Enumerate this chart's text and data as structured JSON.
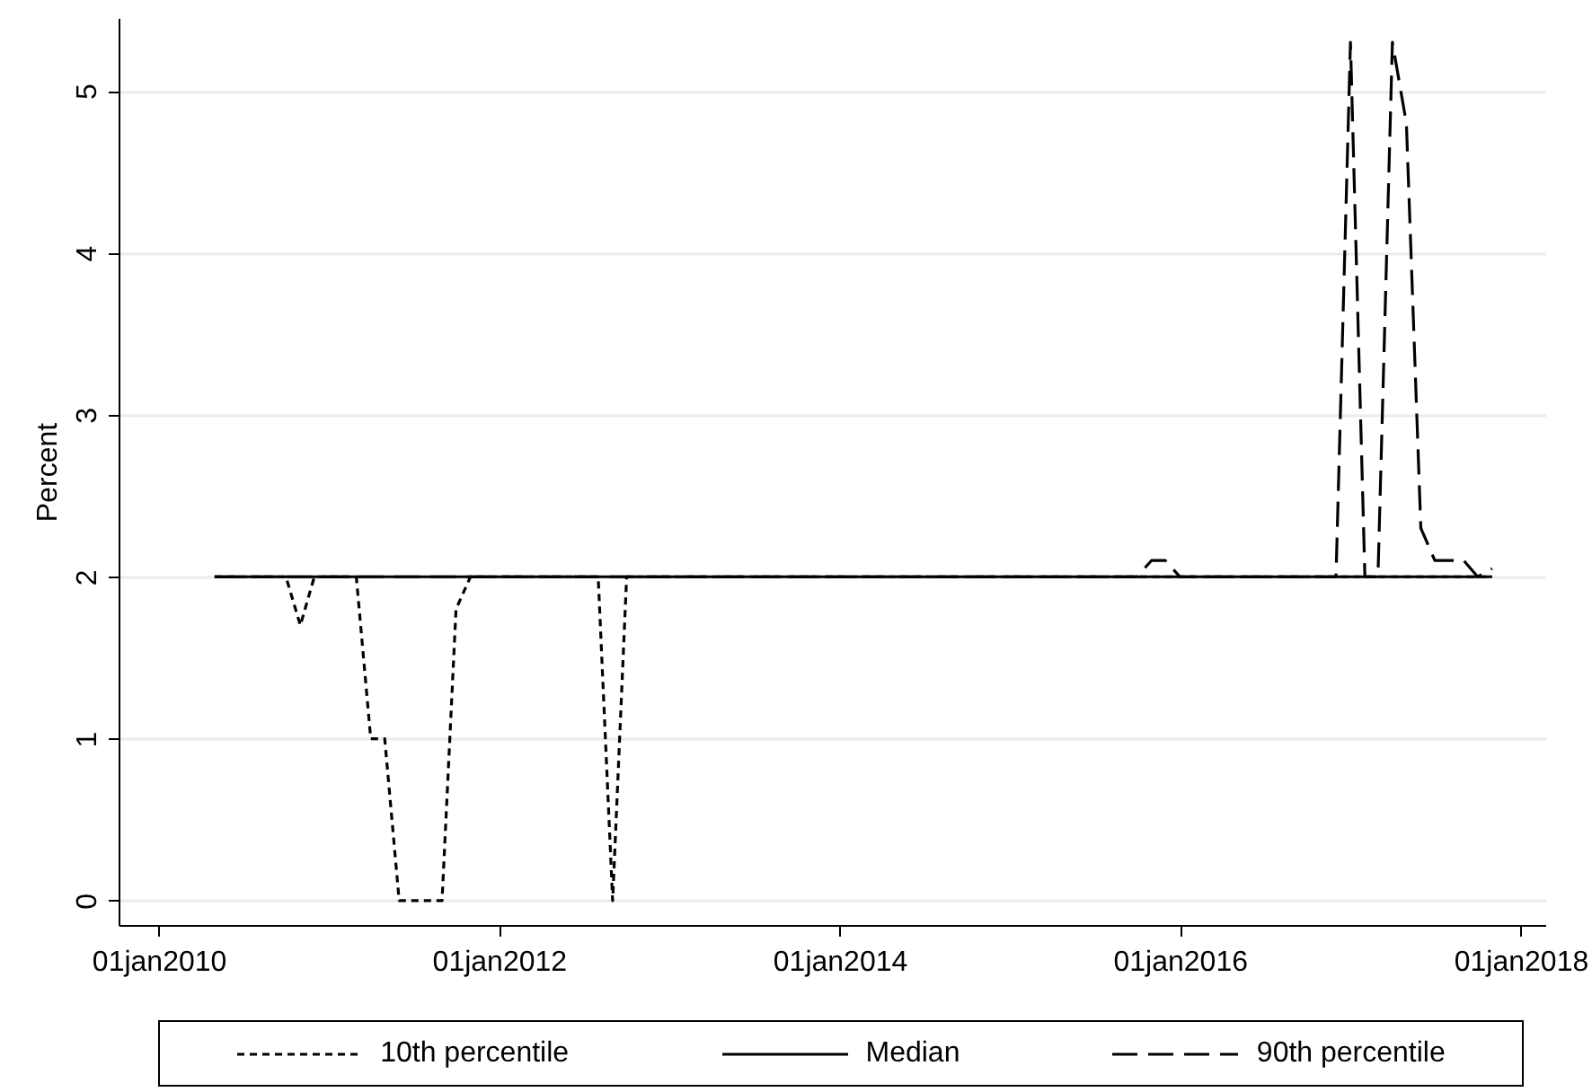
{
  "chart_data": {
    "type": "line",
    "ylabel": "Percent",
    "xlim": [
      "2009-10-07",
      "2018-02-23"
    ],
    "ylim": [
      -0.15,
      5.45
    ],
    "xticks": [
      {
        "value": "2010-01-01",
        "label": "01jan2010"
      },
      {
        "value": "2012-01-01",
        "label": "01jan2012"
      },
      {
        "value": "2014-01-01",
        "label": "01jan2014"
      },
      {
        "value": "2016-01-01",
        "label": "01jan2016"
      },
      {
        "value": "2018-01-01",
        "label": "01jan2018"
      }
    ],
    "yticks": [
      0,
      1,
      2,
      3,
      4,
      5
    ],
    "grid": "y",
    "legend": "bottom",
    "marker": "none",
    "series": [
      {
        "name": "10th percentile",
        "color": "#000000",
        "line_style": "dotted",
        "x": [
          "2010-05",
          "2010-10",
          "2010-11",
          "2010-12",
          "2011-03",
          "2011-04",
          "2011-05",
          "2011-06",
          "2011-07",
          "2011-08",
          "2011-09",
          "2011-10",
          "2011-11",
          "2012-08",
          "2012-09",
          "2012-10",
          "2017-11"
        ],
        "values": [
          2,
          2,
          1.7,
          2,
          2,
          1,
          1,
          0,
          0,
          0,
          0,
          1.8,
          2,
          2,
          0,
          2,
          2
        ]
      },
      {
        "name": "Median",
        "color": "#000000",
        "line_style": "solid",
        "x": [
          "2010-05",
          "2017-11"
        ],
        "values": [
          2,
          2
        ]
      },
      {
        "name": "90th percentile",
        "color": "#000000",
        "line_style": "dashed",
        "x": [
          "2010-05",
          "2015-10",
          "2015-11",
          "2015-12",
          "2016-01",
          "2016-12",
          "2017-01",
          "2017-02",
          "2017-03",
          "2017-04",
          "2017-05",
          "2017-06",
          "2017-07",
          "2017-08",
          "2017-09",
          "2017-10",
          "2017-11"
        ],
        "values": [
          2,
          2,
          2.1,
          2.1,
          2,
          2,
          5.3,
          2,
          2,
          5.3,
          4.8,
          2.3,
          2.1,
          2.1,
          2.1,
          2,
          2.05
        ]
      }
    ]
  }
}
